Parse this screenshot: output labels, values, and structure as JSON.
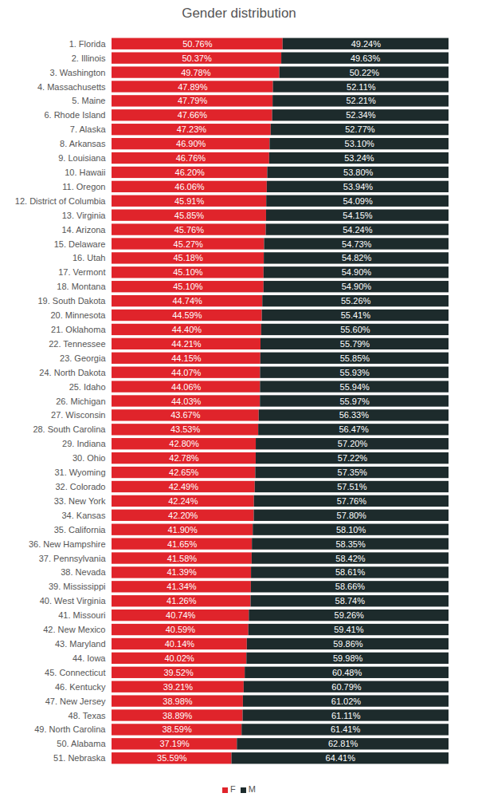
{
  "chart_data": {
    "type": "bar",
    "title": "Gender distribution",
    "orientation": "horizontal",
    "stacked": true,
    "data_labels": true,
    "tick_labels": "y",
    "legend": "bottom",
    "xlim": [
      0,
      100
    ],
    "categories": [
      "1. Florida",
      "2. Illinois",
      "3. Washington",
      "4. Massachusetts",
      "5. Maine",
      "6. Rhode Island",
      "7. Alaska",
      "8. Arkansas",
      "9. Louisiana",
      "10. Hawaii",
      "11. Oregon",
      "12. District of Columbia",
      "13. Virginia",
      "14. Arizona",
      "15. Delaware",
      "16. Utah",
      "17. Vermont",
      "18. Montana",
      "19. South Dakota",
      "20. Minnesota",
      "21. Oklahoma",
      "22. Tennessee",
      "23. Georgia",
      "24. North Dakota",
      "25. Idaho",
      "26. Michigan",
      "27. Wisconsin",
      "28. South Carolina",
      "29. Indiana",
      "30. Ohio",
      "31. Wyoming",
      "32. Colorado",
      "33. New York",
      "34. Kansas",
      "35. California",
      "36. New Hampshire",
      "37. Pennsylvania",
      "38. Nevada",
      "39. Mississippi",
      "40. West Virginia",
      "41. Missouri",
      "42. New Mexico",
      "43. Maryland",
      "44. Iowa",
      "45. Connecticut",
      "46. Kentucky",
      "47. New Jersey",
      "48. Texas",
      "49. North Carolina",
      "50. Alabama",
      "51. Nebraska"
    ],
    "series": [
      {
        "name": "F",
        "color": "#e0242b",
        "values": [
          50.76,
          50.37,
          49.78,
          47.89,
          47.79,
          47.66,
          47.23,
          46.9,
          46.76,
          46.2,
          46.06,
          45.91,
          45.85,
          45.76,
          45.27,
          45.18,
          45.1,
          45.1,
          44.74,
          44.59,
          44.4,
          44.21,
          44.15,
          44.07,
          44.06,
          44.03,
          43.67,
          43.53,
          42.8,
          42.78,
          42.65,
          42.49,
          42.24,
          42.2,
          41.9,
          41.65,
          41.58,
          41.39,
          41.34,
          41.26,
          40.74,
          40.59,
          40.14,
          40.02,
          39.52,
          39.21,
          38.98,
          38.89,
          38.59,
          37.19,
          35.59
        ],
        "value_labels": [
          "50.76%",
          "50.37%",
          "49.78%",
          "47.89%",
          "47.79%",
          "47.66%",
          "47.23%",
          "46.90%",
          "46.76%",
          "46.20%",
          "46.06%",
          "45.91%",
          "45.85%",
          "45.76%",
          "45.27%",
          "45.18%",
          "45.10%",
          "45.10%",
          "44.74%",
          "44.59%",
          "44.40%",
          "44.21%",
          "44.15%",
          "44.07%",
          "44.06%",
          "44.03%",
          "43.67%",
          "43.53%",
          "42.80%",
          "42.78%",
          "42.65%",
          "42.49%",
          "42.24%",
          "42.20%",
          "41.90%",
          "41.65%",
          "41.58%",
          "41.39%",
          "41.34%",
          "41.26%",
          "40.74%",
          "40.59%",
          "40.14%",
          "40.02%",
          "39.52%",
          "39.21%",
          "38.98%",
          "38.89%",
          "38.59%",
          "37.19%",
          "35.59%"
        ]
      },
      {
        "name": "M",
        "color": "#1d2b2c",
        "values": [
          49.24,
          49.63,
          50.22,
          52.11,
          52.21,
          52.34,
          52.77,
          53.1,
          53.24,
          53.8,
          53.94,
          54.09,
          54.15,
          54.24,
          54.73,
          54.82,
          54.9,
          54.9,
          55.26,
          55.41,
          55.6,
          55.79,
          55.85,
          55.93,
          55.94,
          55.97,
          56.33,
          56.47,
          57.2,
          57.22,
          57.35,
          57.51,
          57.76,
          57.8,
          58.1,
          58.35,
          58.42,
          58.61,
          58.66,
          58.74,
          59.26,
          59.41,
          59.86,
          59.98,
          60.48,
          60.79,
          61.02,
          61.11,
          61.41,
          62.81,
          64.41
        ],
        "value_labels": [
          "49.24%",
          "49.63%",
          "50.22%",
          "52.11%",
          "52.21%",
          "52.34%",
          "52.77%",
          "53.10%",
          "53.24%",
          "53.80%",
          "53.94%",
          "54.09%",
          "54.15%",
          "54.24%",
          "54.73%",
          "54.82%",
          "54.90%",
          "54.90%",
          "55.26%",
          "55.41%",
          "55.60%",
          "55.79%",
          "55.85%",
          "55.93%",
          "55.94%",
          "55.97%",
          "56.33%",
          "56.47%",
          "57.20%",
          "57.22%",
          "57.35%",
          "57.51%",
          "57.76%",
          "57.80%",
          "58.10%",
          "58.35%",
          "58.42%",
          "58.61%",
          "58.66%",
          "58.74%",
          "59.26%",
          "59.41%",
          "59.86%",
          "59.98%",
          "60.48%",
          "60.79%",
          "61.02%",
          "61.11%",
          "61.41%",
          "62.81%",
          "64.41%"
        ]
      }
    ]
  }
}
